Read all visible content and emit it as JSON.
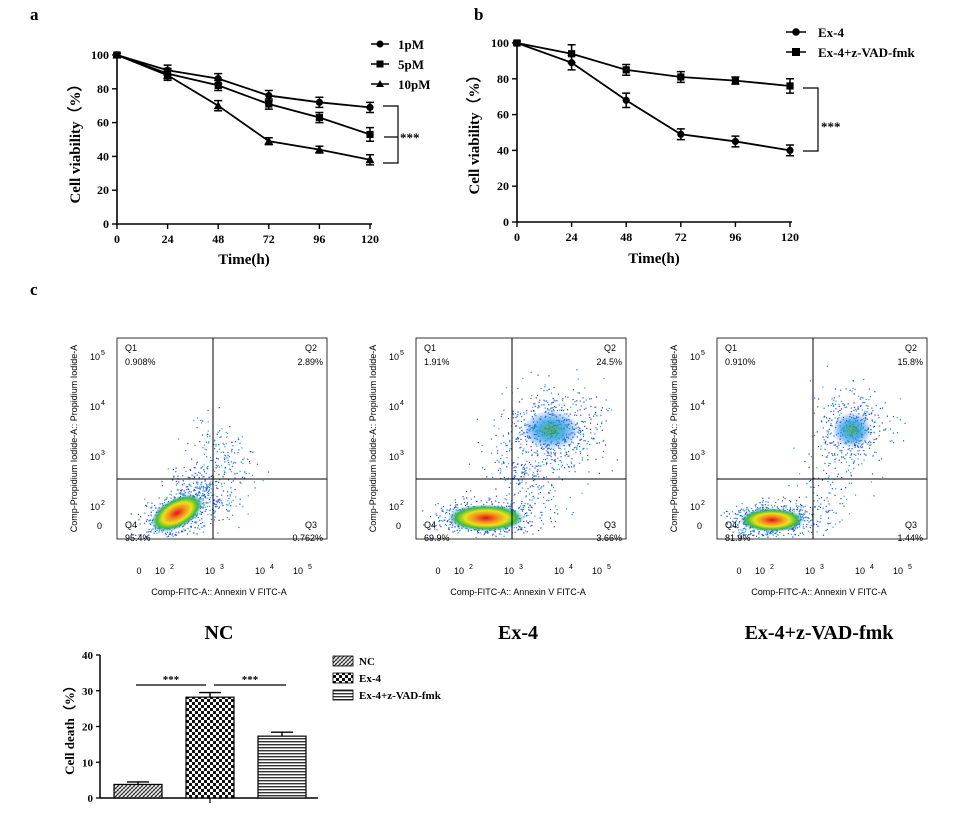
{
  "panels": {
    "a": "a",
    "b": "b",
    "c": "c"
  },
  "chart_data": [
    {
      "id": "a",
      "type": "line",
      "title": "",
      "xlabel": "Time(h)",
      "ylabel": "Cell viability（%）",
      "x": [
        0,
        24,
        48,
        72,
        96,
        120
      ],
      "xticks": [
        "0",
        "24",
        "48",
        "72",
        "96",
        "120"
      ],
      "yticks": [
        "0",
        "20",
        "40",
        "60",
        "80",
        "100"
      ],
      "xlim": [
        0,
        120
      ],
      "ylim": [
        0,
        100
      ],
      "series": [
        {
          "name": "1pM",
          "marker": "circle",
          "values": [
            100,
            91,
            86,
            76,
            72,
            69
          ],
          "errors": [
            1,
            3,
            3,
            3,
            3,
            3
          ]
        },
        {
          "name": "5pM",
          "marker": "square",
          "values": [
            100,
            89,
            82,
            71,
            63,
            53
          ],
          "errors": [
            1,
            3,
            3,
            3,
            3,
            4
          ]
        },
        {
          "name": "10pM",
          "marker": "triangle",
          "values": [
            100,
            88,
            70,
            49,
            44,
            38
          ],
          "errors": [
            1,
            3,
            3,
            2,
            2,
            3
          ]
        }
      ],
      "significance": "***"
    },
    {
      "id": "b",
      "type": "line",
      "title": "",
      "xlabel": "Time(h)",
      "ylabel": "Cell viability（%）",
      "x": [
        0,
        24,
        48,
        72,
        96,
        120
      ],
      "xticks": [
        "0",
        "24",
        "48",
        "72",
        "96",
        "120"
      ],
      "yticks": [
        "0",
        "20",
        "40",
        "60",
        "80",
        "100"
      ],
      "xlim": [
        0,
        120
      ],
      "ylim": [
        0,
        100
      ],
      "series": [
        {
          "name": "Ex-4",
          "marker": "circle",
          "values": [
            100,
            89,
            68,
            49,
            45,
            40
          ],
          "errors": [
            1,
            4,
            4,
            3,
            3,
            3
          ]
        },
        {
          "name": "Ex-4+z-VAD-fmk",
          "marker": "square",
          "values": [
            100,
            94,
            85,
            81,
            79,
            76
          ],
          "errors": [
            1,
            5,
            3,
            3,
            2,
            4
          ]
        }
      ],
      "significance": "***"
    },
    {
      "id": "c-flow",
      "type": "scatter",
      "xlabel": "Comp-FITC-A:: Annexin V FITC-A",
      "ylabel": "Comp-Propidium Iodide-A:: Propidium Iodide-A",
      "axis_tick_labels": {
        "zero": "0",
        "base": "10",
        "exps": [
          "2",
          "3",
          "4",
          "5"
        ]
      },
      "plots": [
        {
          "label": "NC",
          "quadrants": {
            "Q1": "0.908%",
            "Q2": "2.89%",
            "Q3": "0.762%",
            "Q4": "95.4%"
          }
        },
        {
          "label": "Ex-4",
          "quadrants": {
            "Q1": "1.91%",
            "Q2": "24.5%",
            "Q3": "3.66%",
            "Q4": "69.9%"
          }
        },
        {
          "label": "Ex-4+z-VAD-fmk",
          "quadrants": {
            "Q1": "0.910%",
            "Q2": "15.8%",
            "Q3": "1.44%",
            "Q4": "81.9%"
          }
        }
      ],
      "quadrant_names": [
        "Q1",
        "Q2",
        "Q3",
        "Q4"
      ]
    },
    {
      "id": "c-bar",
      "type": "bar",
      "ylabel": "Cell death（%）",
      "categories": [
        "NC",
        "Ex-4",
        "Ex-4+z-VAD-fmk"
      ],
      "values": [
        3.8,
        28.2,
        17.3
      ],
      "errors": [
        0.7,
        1.3,
        1.1
      ],
      "yticks": [
        "0",
        "10",
        "20",
        "30",
        "40"
      ],
      "ylim": [
        0,
        40
      ],
      "legend": [
        "NC",
        "Ex-4",
        "Ex-4+z-VAD-fmk"
      ],
      "significance": [
        "***",
        "***"
      ]
    }
  ]
}
